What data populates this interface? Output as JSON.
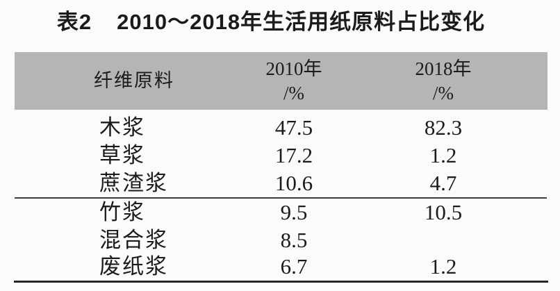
{
  "title": {
    "tag": "表2",
    "text": "2010～2018年生活用纸原料占比变化"
  },
  "table": {
    "header": {
      "col1": "纤维原料",
      "col2_year": "2010年",
      "col2_unit": "/%",
      "col3_year": "2018年",
      "col3_unit": "/%"
    },
    "rows": [
      {
        "material": "木浆",
        "y2010": "47.5",
        "y2018": "82.3"
      },
      {
        "material": "草浆",
        "y2010": "17.2",
        "y2018": "1.2"
      },
      {
        "material": "蔗渣浆",
        "y2010": "10.6",
        "y2018": "4.7"
      },
      {
        "material": "竹浆",
        "y2010": "9.5",
        "y2018": "10.5"
      },
      {
        "material": "混合浆",
        "y2010": "8.5",
        "y2018": ""
      },
      {
        "material": "废纸浆",
        "y2010": "6.7",
        "y2018": "1.2"
      }
    ]
  },
  "colors": {
    "header_bg": "#b5b5b5",
    "text": "#1b1b1b",
    "rule": "#2e2e2e",
    "page_bg": "#fbfbfb"
  },
  "chart_data": {
    "type": "table",
    "title": "表2 2010～2018年生活用纸原料占比变化",
    "columns": [
      "纤维原料",
      "2010年/%",
      "2018年/%"
    ],
    "categories": [
      "木浆",
      "草浆",
      "蔗渣浆",
      "竹浆",
      "混合浆",
      "废纸浆"
    ],
    "series": [
      {
        "name": "2010年/%",
        "values": [
          47.5,
          17.2,
          10.6,
          9.5,
          8.5,
          6.7
        ]
      },
      {
        "name": "2018年/%",
        "values": [
          82.3,
          1.2,
          4.7,
          10.5,
          null,
          1.2
        ]
      }
    ]
  }
}
